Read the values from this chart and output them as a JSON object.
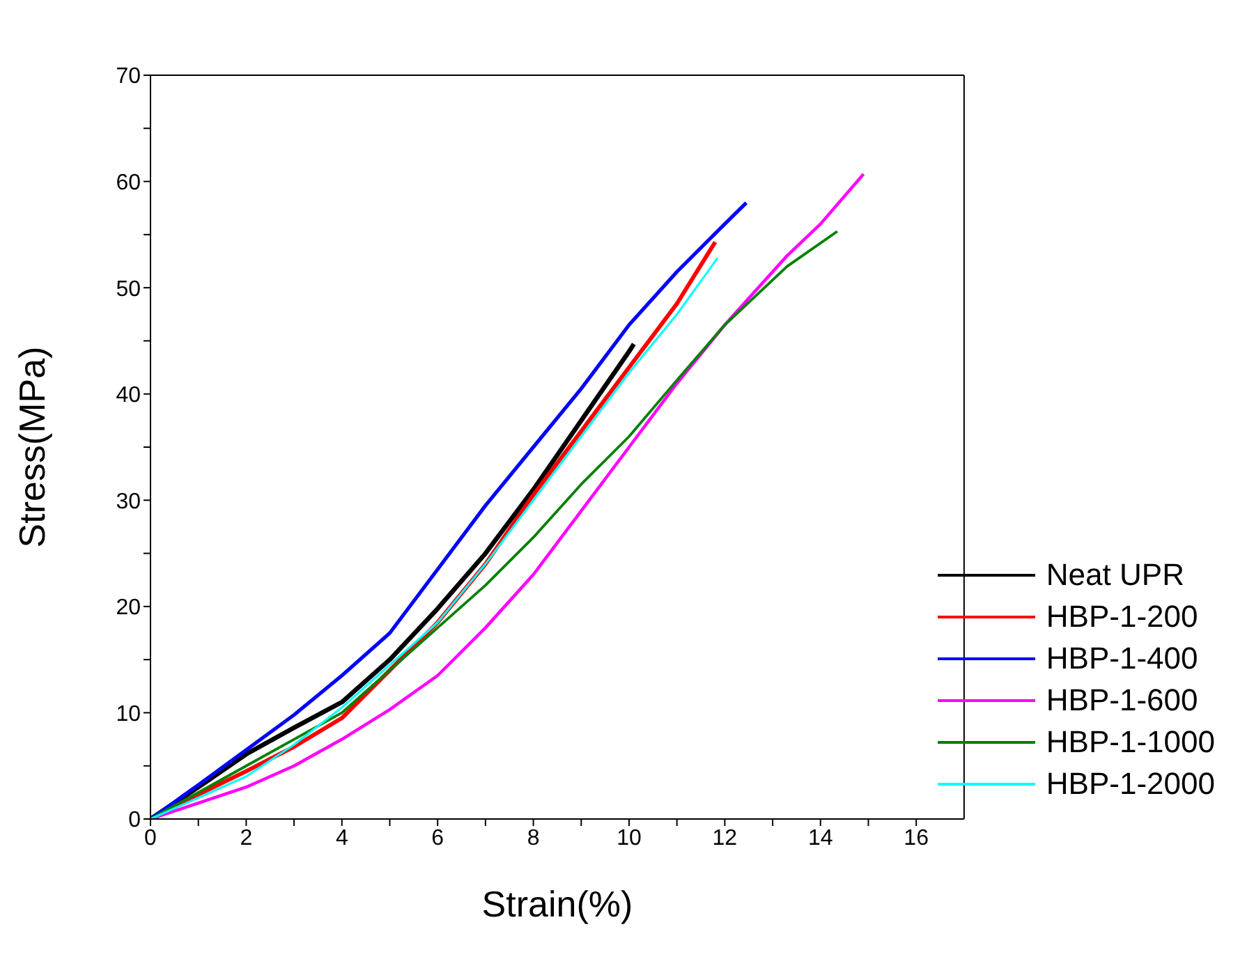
{
  "chart_data": {
    "type": "line",
    "xlabel": "Strain(%)",
    "ylabel": "Stress(MPa)",
    "xlim": [
      0,
      17
    ],
    "ylim": [
      0,
      70
    ],
    "xticks": [
      0,
      {
        "value": 1,
        "label": null
      },
      2,
      {
        "value": 3,
        "label": null
      },
      4,
      {
        "value": 5,
        "label": null
      },
      6,
      {
        "value": 7,
        "label": null
      },
      8,
      {
        "value": 9,
        "label": null
      },
      10,
      {
        "value": 11,
        "label": null
      },
      12,
      {
        "value": 13,
        "label": null
      },
      14,
      {
        "value": 15,
        "label": null
      },
      16
    ],
    "yticks": [
      0,
      {
        "value": 5,
        "label": null
      },
      10,
      {
        "value": 15,
        "label": null
      },
      20,
      {
        "value": 25,
        "label": null
      },
      30,
      {
        "value": 35,
        "label": null
      },
      40,
      {
        "value": 45,
        "label": null
      },
      50,
      {
        "value": 55,
        "label": null
      },
      60,
      {
        "value": 65,
        "label": null
      },
      70
    ],
    "grid": false,
    "legend": "bottom right",
    "marker": "none",
    "line_style": "solid",
    "series": [
      {
        "name": "Neat UPR",
        "color": "#000000",
        "x": [
          0,
          1,
          2,
          3,
          4,
          5,
          6,
          7,
          8,
          9,
          10,
          10.1
        ],
        "values": [
          0,
          3,
          6.1,
          8.6,
          11,
          15,
          19.8,
          25,
          31,
          37.5,
          44,
          44.7
        ]
      },
      {
        "name": "HBP-1-200",
        "color": "#ff0000",
        "x": [
          0,
          1,
          2,
          3,
          4,
          5,
          6,
          7,
          8,
          9,
          10,
          11,
          11.8
        ],
        "values": [
          0,
          2.3,
          4.5,
          6.8,
          9.5,
          14,
          18.5,
          24,
          30.5,
          36.5,
          42.5,
          48.5,
          54.3
        ]
      },
      {
        "name": "HBP-1-400",
        "color": "#0000ff",
        "x": [
          0,
          1,
          2,
          3,
          4,
          5,
          6,
          7,
          8,
          9,
          10,
          11,
          12,
          12.45
        ],
        "values": [
          0,
          3.2,
          6.5,
          9.8,
          13.5,
          17.5,
          23.5,
          29.5,
          35,
          40.5,
          46.5,
          51.5,
          56,
          58
        ]
      },
      {
        "name": "HBP-1-600",
        "color": "#ff00ff",
        "x": [
          0,
          1,
          2,
          3,
          4,
          5,
          6,
          7,
          8,
          9,
          10,
          11,
          12,
          13.3,
          14,
          14.9
        ],
        "values": [
          0,
          1.5,
          3,
          5,
          7.5,
          10.3,
          13.5,
          18,
          23,
          29,
          35,
          41,
          46.5,
          53,
          56,
          60.7
        ]
      },
      {
        "name": "HBP-1-1000",
        "color": "#008000",
        "x": [
          0,
          1,
          2,
          3,
          4,
          5,
          6,
          7,
          8,
          9,
          10,
          11,
          12,
          13.3,
          14.35
        ],
        "values": [
          0,
          2.5,
          5,
          7.5,
          10,
          14,
          18,
          22,
          26.5,
          31.5,
          36,
          41.3,
          46.5,
          52,
          55.3
        ]
      },
      {
        "name": "HBP-1-2000",
        "color": "#00ffff",
        "x": [
          0,
          1,
          2,
          3,
          4,
          5,
          6,
          7,
          8,
          9,
          10,
          11,
          11.85
        ],
        "values": [
          0,
          2,
          4,
          7,
          10.5,
          14.5,
          18.5,
          24,
          30,
          36,
          42,
          47.5,
          52.8
        ]
      }
    ]
  }
}
